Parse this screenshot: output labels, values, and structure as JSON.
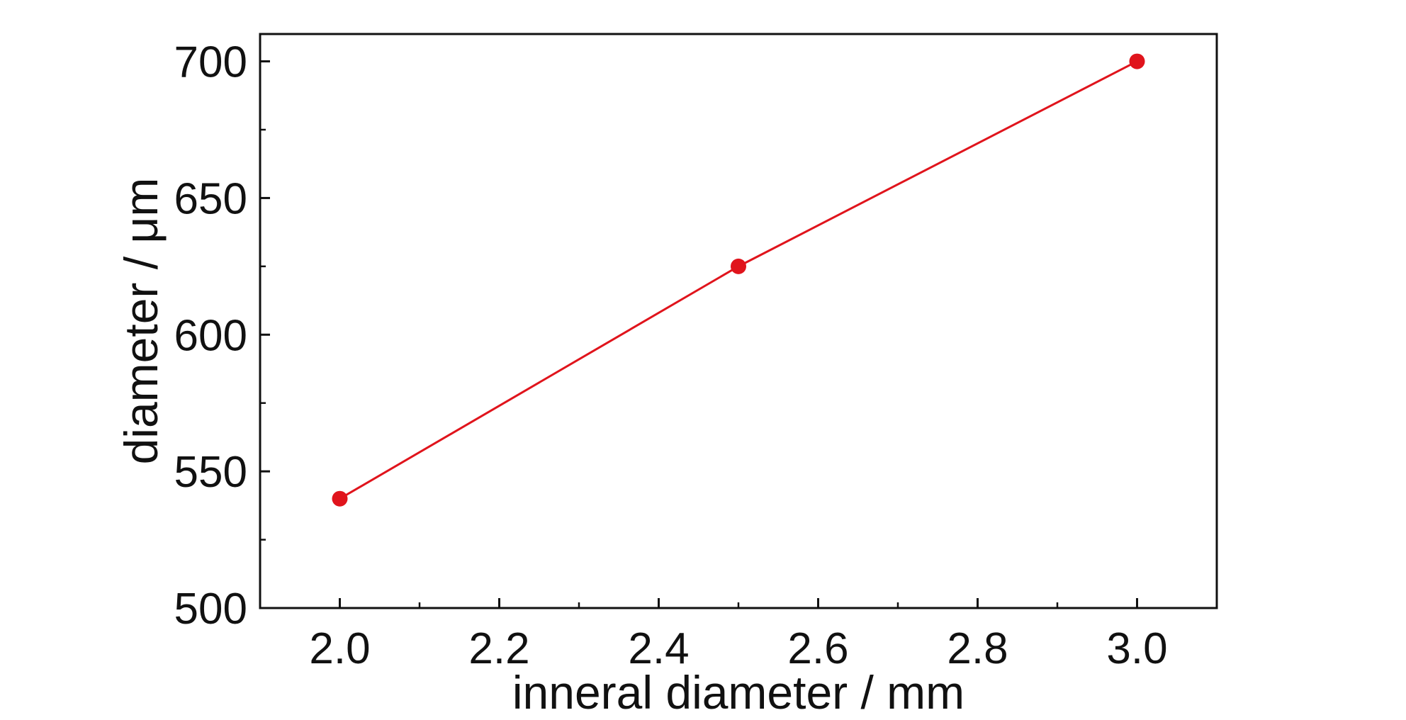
{
  "chart_data": {
    "type": "line",
    "title": "",
    "xlabel": "inneral diameter / mm",
    "ylabel": "diameter / μm",
    "xlim": [
      1.9,
      3.1
    ],
    "ylim": [
      500,
      710
    ],
    "x_ticks": [
      2.0,
      2.2,
      2.4,
      2.6,
      2.8,
      3.0
    ],
    "x_tick_labels": [
      "2.0",
      "2.2",
      "2.4",
      "2.6",
      "2.8",
      "3.0"
    ],
    "y_ticks": [
      500,
      550,
      600,
      650,
      700
    ],
    "y_tick_labels": [
      "500",
      "550",
      "600",
      "650",
      "700"
    ],
    "grid": false,
    "legend": "none",
    "series": [
      {
        "color": "#e0141c",
        "marker": "circle",
        "x": [
          2.0,
          2.5,
          3.0
        ],
        "y": [
          540,
          625,
          700
        ]
      }
    ]
  }
}
